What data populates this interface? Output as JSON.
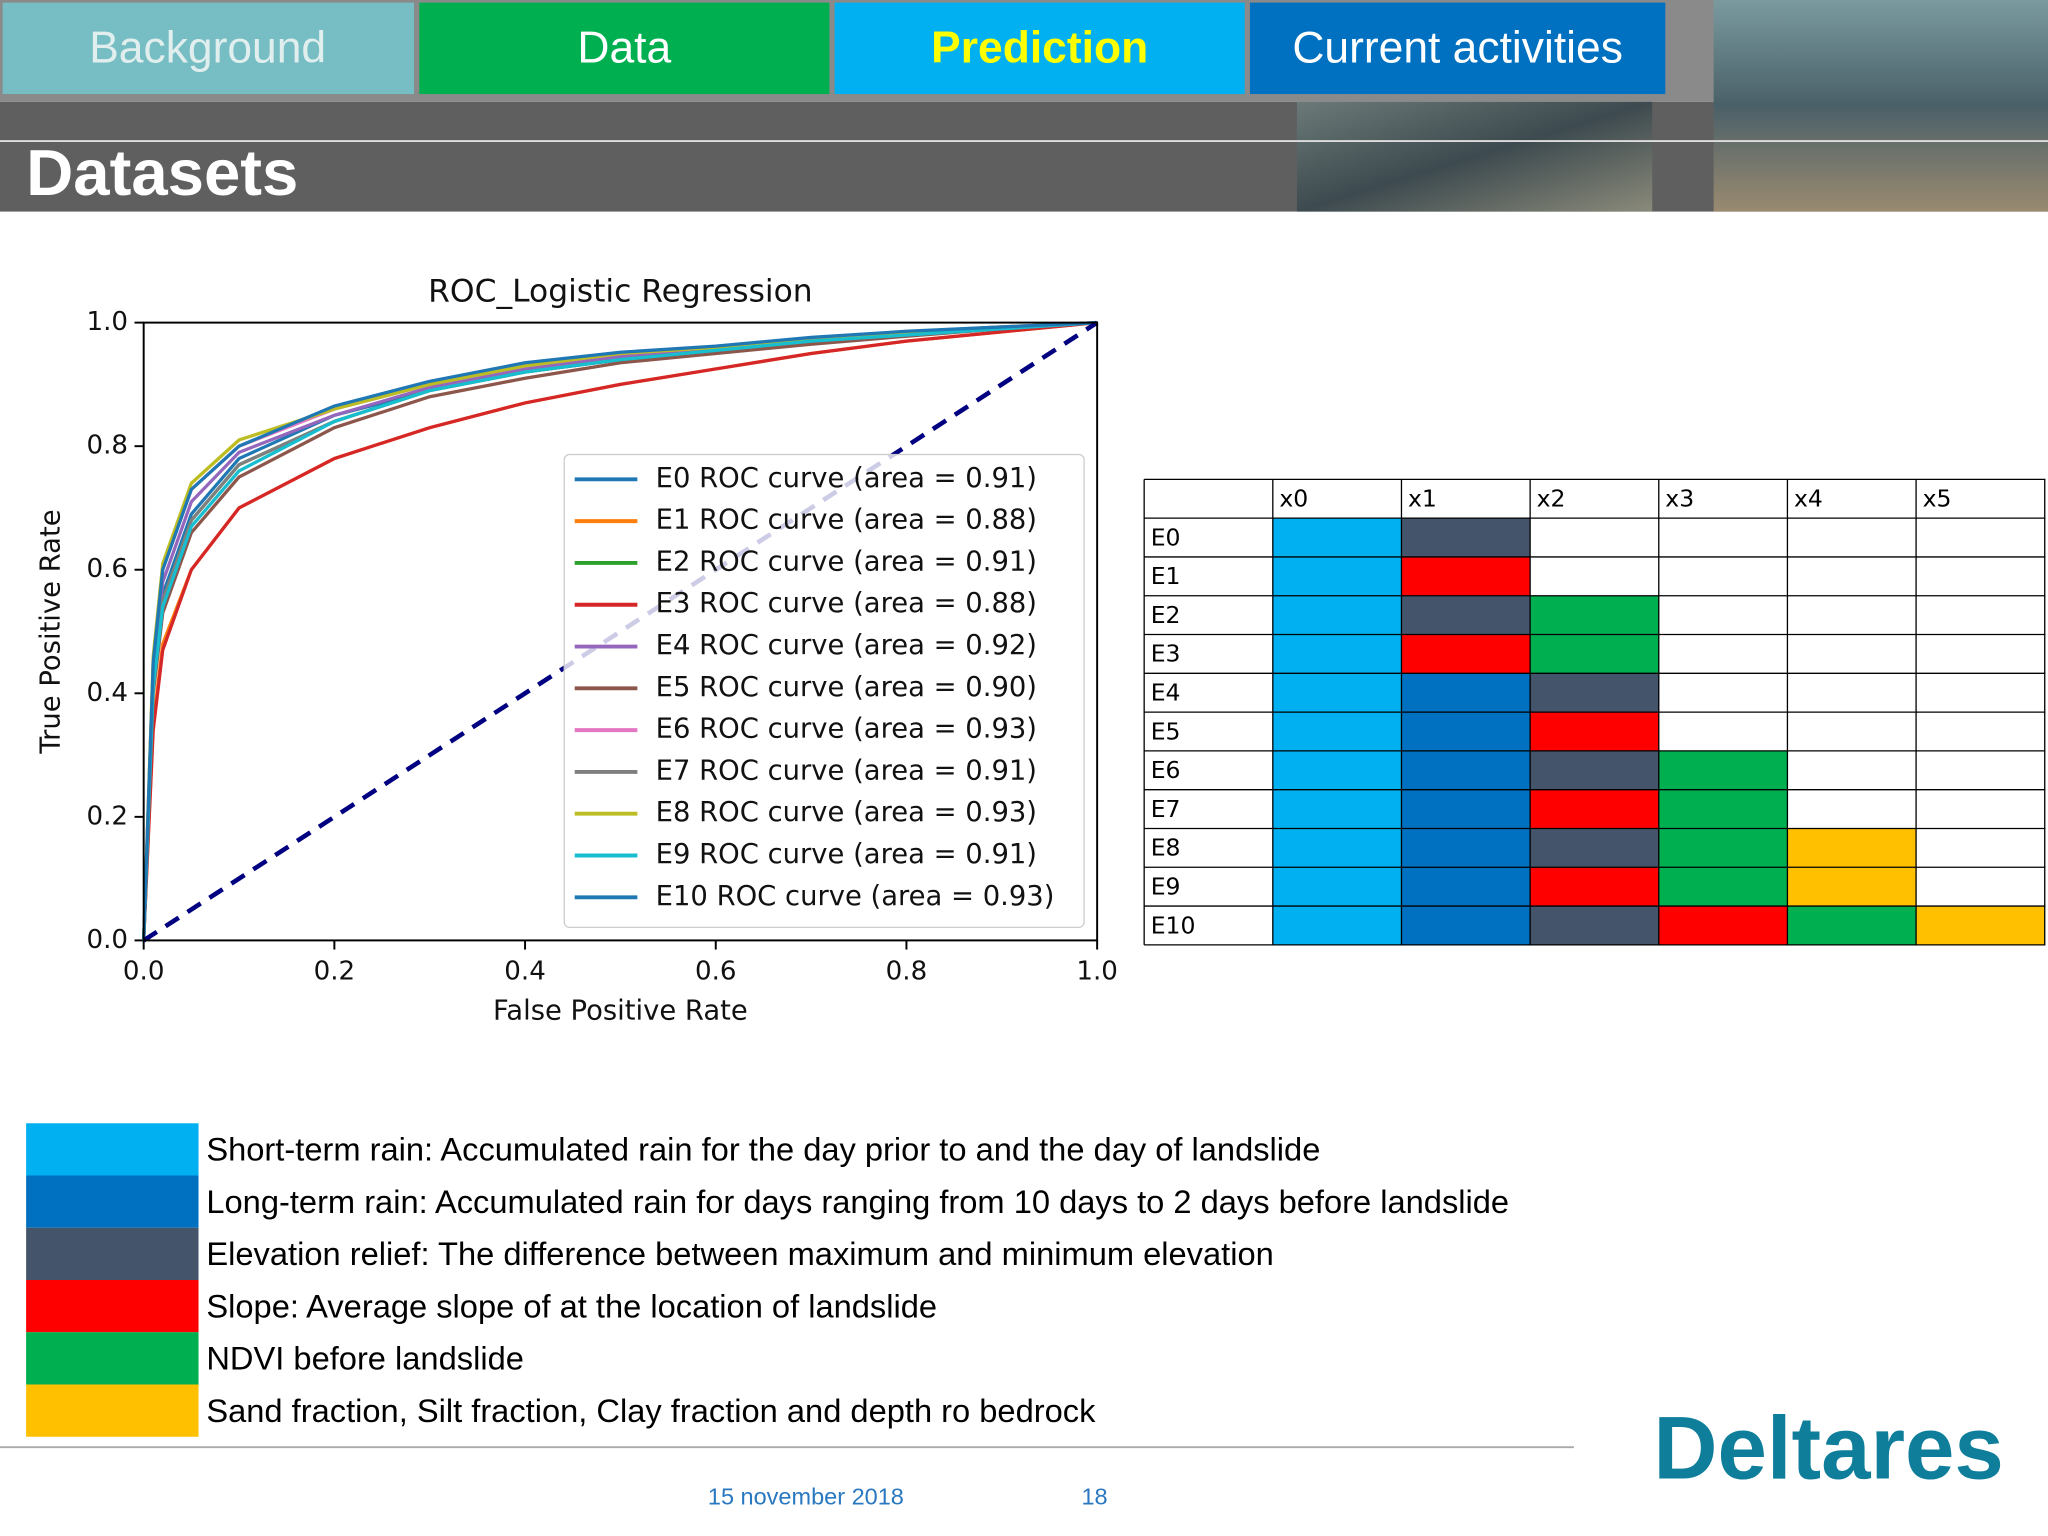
{
  "tabs": [
    "Background",
    "Data",
    "Prediction",
    "Current activities"
  ],
  "header": {
    "title": "Datasets"
  },
  "chart_data": {
    "type": "line",
    "title": "ROC_Logistic Regression",
    "x_label": "False Positive Rate",
    "y_label": "True Positive Rate",
    "xlim": [
      0,
      1
    ],
    "ylim": [
      0,
      1
    ],
    "xticks": [
      {
        "value": 0,
        "label": "0.0"
      },
      0.2,
      0.4,
      0.6,
      0.8,
      {
        "value": 1,
        "label": "1.0"
      }
    ],
    "yticks": [
      {
        "value": 0,
        "label": "0.0"
      },
      0.2,
      0.4,
      0.6,
      0.8,
      {
        "value": 1,
        "label": "1.0"
      }
    ],
    "legend": "lower right",
    "diagonal_color": "#000080",
    "x": [
      0,
      0.01,
      0.02,
      0.05,
      0.1,
      0.2,
      0.3,
      0.4,
      0.5,
      0.6,
      0.7,
      0.8,
      0.9,
      1
    ],
    "series": [
      {
        "name": "E0 ROC curve (area = 0.91)",
        "color": "#1f77b4",
        "values": [
          0,
          0.42,
          0.56,
          0.69,
          0.78,
          0.85,
          0.89,
          0.92,
          0.94,
          0.955,
          0.97,
          0.98,
          0.99,
          1
        ]
      },
      {
        "name": "E1 ROC curve (area = 0.88)",
        "color": "#ff7f0e",
        "values": [
          0,
          0.35,
          0.48,
          0.6,
          0.7,
          0.78,
          0.83,
          0.87,
          0.9,
          0.925,
          0.95,
          0.97,
          0.985,
          1
        ]
      },
      {
        "name": "E2 ROC curve (area = 0.91)",
        "color": "#2ca02c",
        "values": [
          0,
          0.42,
          0.55,
          0.68,
          0.77,
          0.84,
          0.89,
          0.92,
          0.94,
          0.955,
          0.97,
          0.98,
          0.99,
          1
        ]
      },
      {
        "name": "E3 ROC curve (area = 0.88)",
        "color": "#d62728",
        "values": [
          0,
          0.34,
          0.47,
          0.6,
          0.7,
          0.78,
          0.83,
          0.87,
          0.9,
          0.925,
          0.95,
          0.97,
          0.985,
          1
        ]
      },
      {
        "name": "E4 ROC curve (area = 0.92)",
        "color": "#9467bd",
        "values": [
          0,
          0.44,
          0.58,
          0.71,
          0.79,
          0.85,
          0.895,
          0.925,
          0.945,
          0.96,
          0.972,
          0.983,
          0.992,
          1
        ]
      },
      {
        "name": "E5 ROC curve (area = 0.90)",
        "color": "#8c564b",
        "values": [
          0,
          0.4,
          0.53,
          0.66,
          0.75,
          0.83,
          0.88,
          0.91,
          0.935,
          0.95,
          0.965,
          0.978,
          0.99,
          1
        ]
      },
      {
        "name": "E6 ROC curve (area = 0.93)",
        "color": "#e377c2",
        "values": [
          0,
          0.45,
          0.6,
          0.73,
          0.8,
          0.86,
          0.9,
          0.93,
          0.95,
          0.96,
          0.975,
          0.985,
          0.993,
          1
        ]
      },
      {
        "name": "E7 ROC curve (area = 0.91)",
        "color": "#7f7f7f",
        "values": [
          0,
          0.42,
          0.55,
          0.68,
          0.77,
          0.84,
          0.89,
          0.92,
          0.94,
          0.955,
          0.97,
          0.98,
          0.99,
          1
        ]
      },
      {
        "name": "E8 ROC curve (area = 0.93)",
        "color": "#bcbd22",
        "values": [
          0,
          0.46,
          0.61,
          0.74,
          0.81,
          0.86,
          0.9,
          0.93,
          0.95,
          0.96,
          0.975,
          0.985,
          0.993,
          1
        ]
      },
      {
        "name": "E9 ROC curve (area = 0.91)",
        "color": "#17becf",
        "values": [
          0,
          0.41,
          0.54,
          0.67,
          0.76,
          0.84,
          0.89,
          0.92,
          0.94,
          0.955,
          0.97,
          0.98,
          0.99,
          1
        ]
      },
      {
        "name": "E10 ROC curve (area = 0.93)",
        "color": "#1f77b4",
        "values": [
          0,
          0.45,
          0.6,
          0.73,
          0.8,
          0.865,
          0.905,
          0.935,
          0.952,
          0.962,
          0.976,
          0.986,
          0.993,
          1
        ]
      }
    ]
  },
  "table": {
    "columns": [
      "x0",
      "x1",
      "x2",
      "x3",
      "x4",
      "x5"
    ],
    "rows": [
      {
        "label": "E0",
        "colors": [
          "#00b0f0",
          "#44546a"
        ]
      },
      {
        "label": "E1",
        "colors": [
          "#00b0f0",
          "#ff0000"
        ]
      },
      {
        "label": "E2",
        "colors": [
          "#00b0f0",
          "#44546a",
          "#00b050"
        ]
      },
      {
        "label": "E3",
        "colors": [
          "#00b0f0",
          "#ff0000",
          "#00b050"
        ]
      },
      {
        "label": "E4",
        "colors": [
          "#00b0f0",
          "#0070c0",
          "#44546a"
        ]
      },
      {
        "label": "E5",
        "colors": [
          "#00b0f0",
          "#0070c0",
          "#ff0000"
        ]
      },
      {
        "label": "E6",
        "colors": [
          "#00b0f0",
          "#0070c0",
          "#44546a",
          "#00b050"
        ]
      },
      {
        "label": "E7",
        "colors": [
          "#00b0f0",
          "#0070c0",
          "#ff0000",
          "#00b050"
        ]
      },
      {
        "label": "E8",
        "colors": [
          "#00b0f0",
          "#0070c0",
          "#44546a",
          "#00b050",
          "#ffc000"
        ]
      },
      {
        "label": "E9",
        "colors": [
          "#00b0f0",
          "#0070c0",
          "#ff0000",
          "#00b050",
          "#ffc000"
        ]
      },
      {
        "label": "E10",
        "colors": [
          "#00b0f0",
          "#0070c0",
          "#44546a",
          "#ff0000",
          "#00b050",
          "#ffc000"
        ]
      }
    ]
  },
  "key": [
    {
      "color": "#00b0f0",
      "text": "Short-term rain: Accumulated rain for the day prior to and the day of landslide"
    },
    {
      "color": "#0070c0",
      "text": "Long-term rain: Accumulated rain for days ranging from 10 days to 2 days before landslide"
    },
    {
      "color": "#44546a",
      "text": "Elevation relief: The difference between maximum and minimum elevation"
    },
    {
      "color": "#ff0000",
      "text": "Slope: Average slope of at the location of landslide"
    },
    {
      "color": "#00b050",
      "text": "NDVI before landslide"
    },
    {
      "color": "#ffc000",
      "text": "Sand fraction, Silt fraction, Clay fraction and depth ro bedrock"
    }
  ],
  "footer": {
    "date": "15 november 2018",
    "page": "18",
    "logo": "Deltares"
  }
}
